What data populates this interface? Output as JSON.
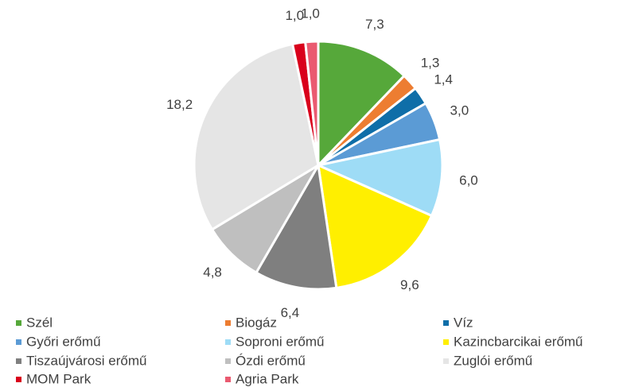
{
  "chart_data": {
    "type": "pie",
    "categories": [
      "Szél",
      "Biogáz",
      "Víz",
      "Győri erőmű",
      "Soproni erőmű",
      "Kazincbarcikai erőmű",
      "Tiszaújvárosi erőmű",
      "Ózdi erőmű",
      "Zuglói erőmű",
      "MOM Park",
      "Agria Park"
    ],
    "values": [
      7.3,
      1.3,
      1.4,
      3.0,
      6.0,
      9.6,
      6.4,
      4.8,
      18.2,
      1.0,
      1.0
    ],
    "value_labels": [
      "7,3",
      "1,3",
      "1,4",
      "3,0",
      "6,0",
      "9,6",
      "6,4",
      "4,8",
      "18,2",
      "1,0",
      "1,0"
    ],
    "colors": [
      "#56a83a",
      "#ed7d31",
      "#0f6ea8",
      "#5b9bd5",
      "#9edcf6",
      "#ffef00",
      "#7f7f7f",
      "#bfbfbf",
      "#e5e5e5",
      "#d9001b",
      "#ea5a70"
    ],
    "legend": "bottom"
  }
}
